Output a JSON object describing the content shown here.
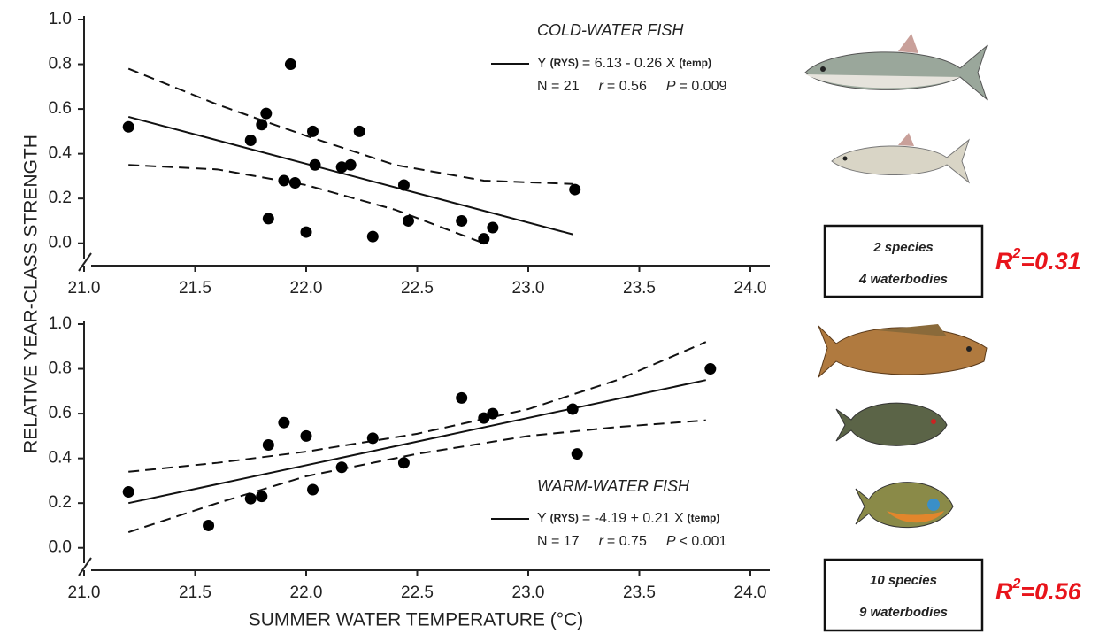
{
  "chart_data": [
    {
      "type": "scatter",
      "ylabel": "RELATIVE YEAR-CLASS STRENGTH",
      "xlim": [
        21,
        24
      ],
      "ylim": [
        -0.1,
        1.0
      ],
      "xticks": [
        {
          "value": 21,
          "label": "21.0"
        },
        21.5,
        {
          "value": 22,
          "label": "22.0"
        },
        22.5,
        {
          "value": 23,
          "label": "23.0"
        },
        23.5,
        {
          "value": 24,
          "label": "24.0"
        }
      ],
      "yticks": [
        {
          "value": 0,
          "label": "0.0"
        },
        0.2,
        0.4,
        0.6,
        0.8,
        {
          "value": 1,
          "label": "1.0"
        }
      ],
      "color": "#000000",
      "x": [
        21.2,
        21.75,
        21.8,
        21.82,
        21.93,
        21.83,
        21.9,
        21.95,
        22.0,
        22.03,
        22.04,
        22.16,
        22.2,
        22.24,
        22.3,
        22.44,
        22.46,
        22.7,
        22.8,
        22.84,
        23.21
      ],
      "values": [
        0.52,
        0.46,
        0.53,
        0.58,
        0.8,
        0.11,
        0.28,
        0.27,
        0.05,
        0.5,
        0.35,
        0.34,
        0.35,
        0.5,
        0.03,
        0.26,
        0.1,
        0.1,
        0.02,
        0.07,
        0.24
      ],
      "lines": [
        {
          "style": "solid",
          "x": [
            21.2,
            23.2
          ],
          "values": [
            0.565,
            0.04
          ]
        },
        {
          "style": "dashed",
          "x": [
            21.2,
            21.6,
            22.0,
            22.4,
            22.8,
            23.2
          ],
          "values": [
            0.78,
            0.62,
            0.48,
            0.35,
            0.28,
            0.265
          ]
        },
        {
          "style": "dashed",
          "x": [
            21.2,
            21.6,
            22.0,
            22.4,
            22.8
          ],
          "values": [
            0.35,
            0.33,
            0.26,
            0.15,
            0.0
          ]
        }
      ],
      "annotations": {
        "title": "COLD-WATER FISH",
        "eq_y": "Y",
        "eq_sub1": "(RYS)",
        "eq_body": "= 6.13 - 0.26 X",
        "eq_sub2": "(temp)",
        "n": "N = 21",
        "r": "r",
        "r_val": "= 0.56",
        "p": "P",
        "p_val": "= 0.009",
        "box_line1": "2 species",
        "box_line2": "4 waterbodies",
        "r2_r": "R",
        "r2_sup": "2",
        "r2_val": "=0.31"
      }
    },
    {
      "type": "scatter",
      "xlabel": "SUMMER WATER TEMPERATURE (°C)",
      "xlim": [
        21,
        24
      ],
      "ylim": [
        -0.1,
        1.0
      ],
      "xticks": [
        {
          "value": 21,
          "label": "21.0"
        },
        21.5,
        {
          "value": 22,
          "label": "22.0"
        },
        22.5,
        {
          "value": 23,
          "label": "23.0"
        },
        23.5,
        {
          "value": 24,
          "label": "24.0"
        }
      ],
      "yticks": [
        {
          "value": 0,
          "label": "0.0"
        },
        0.2,
        0.4,
        0.6,
        0.8,
        {
          "value": 1,
          "label": "1.0"
        }
      ],
      "color": "#000000",
      "x": [
        21.2,
        21.56,
        21.75,
        21.8,
        21.83,
        21.9,
        22.0,
        22.03,
        22.16,
        22.3,
        22.44,
        22.7,
        22.8,
        22.84,
        23.2,
        23.22,
        23.82
      ],
      "values": [
        0.25,
        0.1,
        0.22,
        0.23,
        0.46,
        0.56,
        0.5,
        0.26,
        0.36,
        0.49,
        0.38,
        0.67,
        0.58,
        0.6,
        0.62,
        0.42,
        0.8
      ],
      "lines": [
        {
          "style": "solid",
          "x": [
            21.2,
            23.8
          ],
          "values": [
            0.2,
            0.75
          ]
        },
        {
          "style": "dashed",
          "x": [
            21.2,
            21.6,
            22.0,
            22.5,
            23.0,
            23.4,
            23.8
          ],
          "values": [
            0.34,
            0.38,
            0.43,
            0.51,
            0.62,
            0.75,
            0.92
          ]
        },
        {
          "style": "dashed",
          "x": [
            21.2,
            21.6,
            22.0,
            22.5,
            23.0,
            23.4,
            23.8
          ],
          "values": [
            0.07,
            0.2,
            0.32,
            0.42,
            0.5,
            0.54,
            0.57
          ]
        }
      ],
      "annotations": {
        "title": "WARM-WATER FISH",
        "eq_y": "Y",
        "eq_sub1": "(RYS)",
        "eq_body": "= -4.19 + 0.21 X",
        "eq_sub2": "(temp)",
        "n": "N = 17",
        "r": "r",
        "r_val": "= 0.75",
        "p": "P",
        "p_val": "< 0.001",
        "box_line1": "10 species",
        "box_line2": "9 waterbodies",
        "r2_r": "R",
        "r2_sup": "2",
        "r2_val": "=0.56"
      }
    }
  ]
}
